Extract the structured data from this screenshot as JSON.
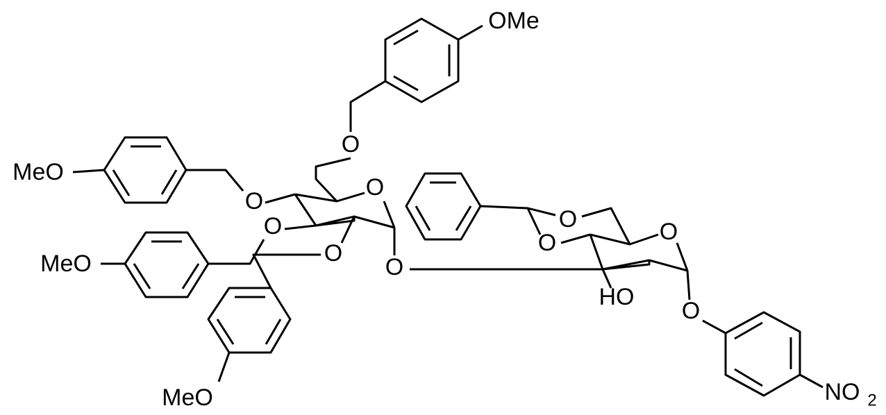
{
  "molecule": {
    "atoms": [
      {
        "label": "OMe"
      },
      {
        "label": "MeO"
      },
      {
        "label": "MeO"
      },
      {
        "label": "MeO"
      },
      {
        "label": "O"
      },
      {
        "label": "O"
      },
      {
        "label": "O"
      },
      {
        "label": "O"
      },
      {
        "label": "O"
      },
      {
        "label": "O"
      },
      {
        "label": "O"
      },
      {
        "label": "O"
      },
      {
        "label": "O"
      },
      {
        "label": "O"
      },
      {
        "label": "HO"
      },
      {
        "label": "NO",
        "subscript": "2"
      }
    ]
  }
}
